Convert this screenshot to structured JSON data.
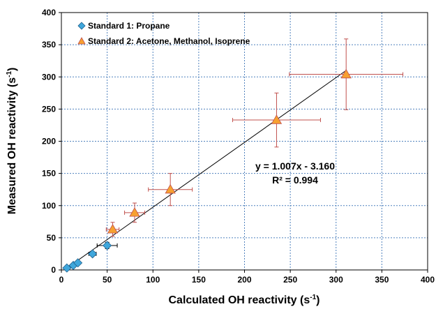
{
  "chart_data": {
    "type": "scatter",
    "xlabel_main": "Calculated OH reactivity (s",
    "xlabel_sup": "-1",
    "xlabel_end": ")",
    "ylabel_main": "Measured OH reactivity (s",
    "ylabel_sup": "-1",
    "ylabel_end": ")",
    "xlim": [
      0,
      400
    ],
    "ylim": [
      0,
      400
    ],
    "xticks": [
      "0",
      "50",
      "100",
      "150",
      "200",
      "250",
      "300",
      "350",
      "400"
    ],
    "yticks": [
      "0",
      "50",
      "100",
      "150",
      "200",
      "250",
      "300",
      "350",
      "400"
    ],
    "grid": true,
    "legend_position": "top-left",
    "series": [
      {
        "name": "Standard 1: Propane",
        "marker": "diamond",
        "color": "#3fa7dc",
        "edge_color": "#1f5f8b",
        "error_color": "#000000",
        "points": [
          {
            "x": 6,
            "y": 3,
            "xerr": 1,
            "yerr": 1
          },
          {
            "x": 13,
            "y": 7,
            "xerr": 1.5,
            "yerr": 1.5
          },
          {
            "x": 18,
            "y": 11,
            "xerr": 2,
            "yerr": 2
          },
          {
            "x": 34,
            "y": 25,
            "xerr": 4,
            "yerr": 3
          },
          {
            "x": 50,
            "y": 38,
            "xerr": 11,
            "yerr": 5
          }
        ]
      },
      {
        "name": "Standard 2: Acetone, Methanol, Isoprene",
        "marker": "triangle",
        "color": "#f7a130",
        "edge_color": "#c0504d",
        "error_color": "#c0504d",
        "points": [
          {
            "x": 56,
            "y": 63,
            "xerr": 7,
            "yerr": 11
          },
          {
            "x": 80,
            "y": 89,
            "xerr": 11,
            "yerr": 15
          },
          {
            "x": 119,
            "y": 125,
            "xerr": 24,
            "yerr": 25
          },
          {
            "x": 235,
            "y": 233,
            "xerr": 48,
            "yerr": 42
          },
          {
            "x": 311,
            "y": 304,
            "xerr": 62,
            "yerr": 55
          }
        ]
      }
    ],
    "fit": {
      "slope": 1.007,
      "intercept": -3.16,
      "x_range": [
        3,
        311
      ],
      "color": "#000000"
    },
    "equation_text": "y = 1.007x - 3.160",
    "r2_text": "R² = 0.994"
  }
}
